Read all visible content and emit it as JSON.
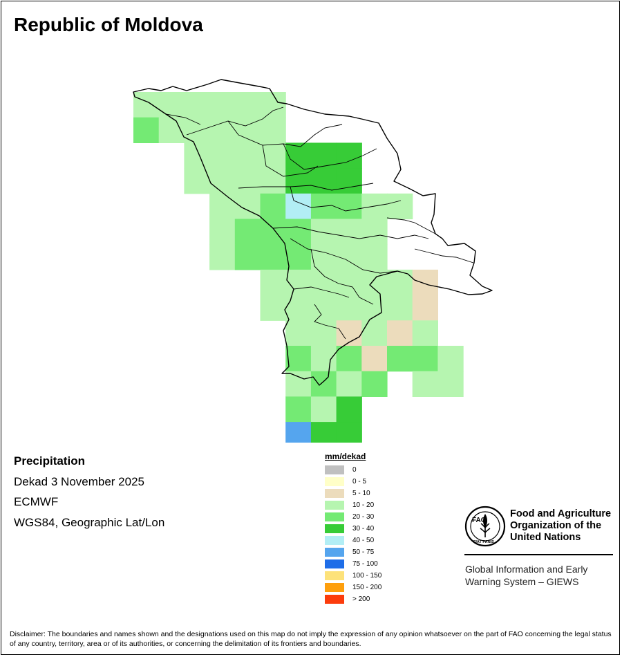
{
  "title": "Republic of Moldova",
  "info": {
    "variable": "Precipitation",
    "period": "Dekad 3 November 2025",
    "source": "ECMWF",
    "projection": "WGS84, Geographic Lat/Lon"
  },
  "legend": {
    "title": "mm/dekad",
    "items": [
      {
        "label": "0",
        "color": "#c0c0c0"
      },
      {
        "label": "0 - 5",
        "color": "#ffffc8"
      },
      {
        "label": "5 - 10",
        "color": "#ecdcbc"
      },
      {
        "label": "10 - 20",
        "color": "#b6f5b0"
      },
      {
        "label": "20 - 30",
        "color": "#74ea74"
      },
      {
        "label": "30 - 40",
        "color": "#37cc37"
      },
      {
        "label": "40 - 50",
        "color": "#b2eef5"
      },
      {
        "label": "50 - 75",
        "color": "#55a5ee"
      },
      {
        "label": "75 - 100",
        "color": "#1f6ee8"
      },
      {
        "label": "100 - 150",
        "color": "#fde27a"
      },
      {
        "label": "150 - 200",
        "color": "#fe9f0c"
      },
      {
        "label": "> 200",
        "color": "#fc3c0c"
      }
    ]
  },
  "fao": {
    "emblem_text": "FAO",
    "emblem_motto": "FIAT PANIS",
    "name_lines": [
      "Food and Agriculture",
      "Organization of the",
      "United Nations"
    ],
    "giews_lines": [
      "Global Information and Early",
      "Warning System – GIEWS"
    ]
  },
  "disclaimer": "Disclaimer: The boundaries and names shown and the designations used on this map do not imply the expression of any opinion whatsoever on the part of FAO concerning the legal status of any country, territory, area or of its authorities, or concerning the delimitation of its frontiers and boundaries.",
  "map_grid": {
    "lon_start": 26.6,
    "lat_top": 48.5,
    "cell_deg": 0.25,
    "cells": [
      [
        0,
        0,
        "10 - 20"
      ],
      [
        1,
        0,
        "10 - 20"
      ],
      [
        2,
        0,
        "10 - 20"
      ],
      [
        3,
        0,
        "10 - 20"
      ],
      [
        4,
        0,
        "10 - 20"
      ],
      [
        5,
        0,
        "10 - 20"
      ],
      [
        0,
        1,
        "20 - 30"
      ],
      [
        1,
        1,
        "10 - 20"
      ],
      [
        2,
        1,
        "10 - 20"
      ],
      [
        3,
        1,
        "10 - 20"
      ],
      [
        4,
        1,
        "10 - 20"
      ],
      [
        5,
        1,
        "10 - 20"
      ],
      [
        2,
        2,
        "10 - 20"
      ],
      [
        3,
        2,
        "10 - 20"
      ],
      [
        4,
        2,
        "10 - 20"
      ],
      [
        5,
        2,
        "10 - 20"
      ],
      [
        6,
        2,
        "30 - 40"
      ],
      [
        7,
        2,
        "30 - 40"
      ],
      [
        8,
        2,
        "30 - 40"
      ],
      [
        2,
        3,
        "10 - 20"
      ],
      [
        3,
        3,
        "10 - 20"
      ],
      [
        4,
        3,
        "10 - 20"
      ],
      [
        5,
        3,
        "10 - 20"
      ],
      [
        6,
        3,
        "30 - 40"
      ],
      [
        7,
        3,
        "30 - 40"
      ],
      [
        8,
        3,
        "30 - 40"
      ],
      [
        3,
        4,
        "10 - 20"
      ],
      [
        4,
        4,
        "10 - 20"
      ],
      [
        5,
        4,
        "20 - 30"
      ],
      [
        6,
        4,
        "40 - 50"
      ],
      [
        7,
        4,
        "20 - 30"
      ],
      [
        8,
        4,
        "20 - 30"
      ],
      [
        9,
        4,
        "10 - 20"
      ],
      [
        10,
        4,
        "10 - 20"
      ],
      [
        3,
        5,
        "10 - 20"
      ],
      [
        4,
        5,
        "20 - 30"
      ],
      [
        5,
        5,
        "20 - 30"
      ],
      [
        6,
        5,
        "20 - 30"
      ],
      [
        7,
        5,
        "10 - 20"
      ],
      [
        8,
        5,
        "10 - 20"
      ],
      [
        9,
        5,
        "10 - 20"
      ],
      [
        3,
        6,
        "10 - 20"
      ],
      [
        4,
        6,
        "20 - 30"
      ],
      [
        5,
        6,
        "20 - 30"
      ],
      [
        6,
        6,
        "20 - 30"
      ],
      [
        7,
        6,
        "10 - 20"
      ],
      [
        8,
        6,
        "10 - 20"
      ],
      [
        9,
        6,
        "10 - 20"
      ],
      [
        5,
        7,
        "10 - 20"
      ],
      [
        6,
        7,
        "10 - 20"
      ],
      [
        7,
        7,
        "10 - 20"
      ],
      [
        8,
        7,
        "10 - 20"
      ],
      [
        9,
        7,
        "10 - 20"
      ],
      [
        10,
        7,
        "10 - 20"
      ],
      [
        11,
        7,
        "5 - 10"
      ],
      [
        5,
        8,
        "10 - 20"
      ],
      [
        6,
        8,
        "10 - 20"
      ],
      [
        7,
        8,
        "10 - 20"
      ],
      [
        8,
        8,
        "10 - 20"
      ],
      [
        9,
        8,
        "10 - 20"
      ],
      [
        10,
        8,
        "10 - 20"
      ],
      [
        11,
        8,
        "5 - 10"
      ],
      [
        6,
        9,
        "10 - 20"
      ],
      [
        7,
        9,
        "10 - 20"
      ],
      [
        8,
        9,
        "5 - 10"
      ],
      [
        9,
        9,
        "10 - 20"
      ],
      [
        10,
        9,
        "5 - 10"
      ],
      [
        11,
        9,
        "10 - 20"
      ],
      [
        6,
        10,
        "20 - 30"
      ],
      [
        7,
        10,
        "10 - 20"
      ],
      [
        8,
        10,
        "20 - 30"
      ],
      [
        9,
        10,
        "5 - 10"
      ],
      [
        10,
        10,
        "20 - 30"
      ],
      [
        11,
        10,
        "20 - 30"
      ],
      [
        12,
        10,
        "10 - 20"
      ],
      [
        6,
        11,
        "10 - 20"
      ],
      [
        7,
        11,
        "20 - 30"
      ],
      [
        8,
        11,
        "10 - 20"
      ],
      [
        9,
        11,
        "20 - 30"
      ],
      [
        11,
        11,
        "10 - 20"
      ],
      [
        12,
        11,
        "10 - 20"
      ],
      [
        6,
        12,
        "20 - 30"
      ],
      [
        7,
        12,
        "10 - 20"
      ],
      [
        8,
        12,
        "30 - 40"
      ],
      [
        6,
        13,
        "50 - 75"
      ],
      [
        7,
        13,
        "30 - 40"
      ],
      [
        8,
        13,
        "30 - 40"
      ],
      [
        6,
        14,
        "50 - 75"
      ],
      [
        7,
        14,
        "30 - 40"
      ],
      [
        7,
        15,
        "30 - 40"
      ]
    ]
  }
}
